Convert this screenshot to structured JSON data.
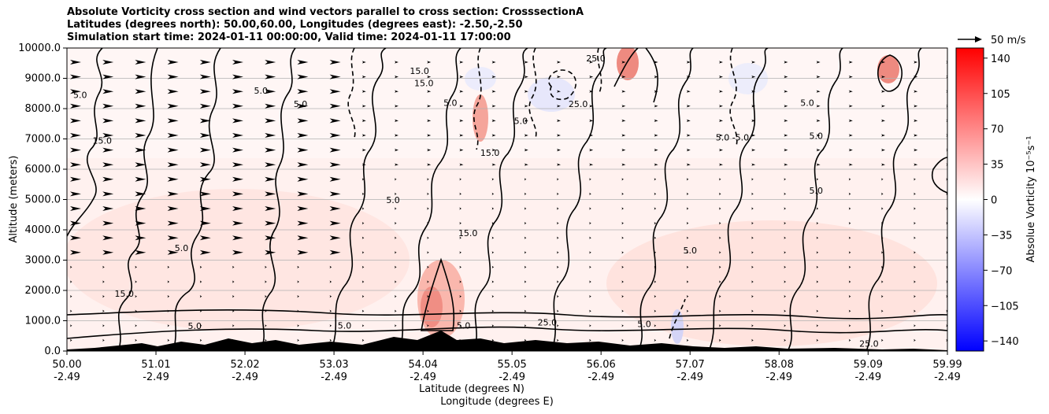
{
  "title": {
    "line1": "Absolute Vorticity cross section and wind vectors parallel to cross section: CrosssectionA",
    "line2": "Latitudes (degrees north): 50.00,60.00, Longitudes (degrees east): -2.50,-2.50",
    "line3": "Simulation start time: 2024-01-11 00:00:00, Valid time: 2024-01-11 17:00:00"
  },
  "reference_vector": {
    "label": "50 m/s"
  },
  "axes": {
    "ylabel": "Altitude (meters)",
    "xlabel_lat": "Latitude (degrees N)",
    "xlabel_lon": "Longitude (degrees E)"
  },
  "colorbar": {
    "label": "Absolue Vorticity 10⁻⁵s⁻¹",
    "ticks": [
      "140",
      "105",
      "70",
      "35",
      "0",
      "−35",
      "−70",
      "−105",
      "−140"
    ],
    "colors": {
      "high": "#ff0000",
      "mid": "#ffffff",
      "low": "#0000ff"
    }
  },
  "chart_data": {
    "type": "heatmap",
    "description_type": "vertical cross section contour + vectors",
    "x_ticks": [
      {
        "lat": "50.00",
        "lon": "-2.49"
      },
      {
        "lat": "51.01",
        "lon": "-2.49"
      },
      {
        "lat": "52.02",
        "lon": "-2.49"
      },
      {
        "lat": "53.03",
        "lon": "-2.49"
      },
      {
        "lat": "54.04",
        "lon": "-2.49"
      },
      {
        "lat": "55.05",
        "lon": "-2.49"
      },
      {
        "lat": "56.06",
        "lon": "-2.49"
      },
      {
        "lat": "57.07",
        "lon": "-2.49"
      },
      {
        "lat": "58.08",
        "lon": "-2.49"
      },
      {
        "lat": "59.09",
        "lon": "-2.49"
      },
      {
        "lat": "59.99",
        "lon": "-2.49"
      }
    ],
    "x_range": [
      50.0,
      59.99
    ],
    "y_ticks": [
      "0.0",
      "1000.0",
      "2000.0",
      "3000.0",
      "4000.0",
      "5000.0",
      "6000.0",
      "7000.0",
      "8000.0",
      "9000.0",
      "10000.0"
    ],
    "y_range": [
      0,
      10000
    ],
    "colorbar_range": [
      -150,
      150
    ],
    "grid": "horizontal",
    "contour_labels": [
      {
        "text": "5.0",
        "x": 50.15,
        "y": 8450
      },
      {
        "text": "15.0",
        "x": 50.4,
        "y": 6950
      },
      {
        "text": "5.0",
        "x": 51.3,
        "y": 3400
      },
      {
        "text": "15.0",
        "x": 50.65,
        "y": 1900
      },
      {
        "text": "5.0",
        "x": 52.2,
        "y": 8600
      },
      {
        "text": "5.0",
        "x": 52.65,
        "y": 8150
      },
      {
        "text": "5.0",
        "x": 53.7,
        "y": 4990
      },
      {
        "text": "15.0",
        "x": 54.55,
        "y": 3900
      },
      {
        "text": "15.0",
        "x": 54.0,
        "y": 9250
      },
      {
        "text": "15.0",
        "x": 54.05,
        "y": 8850
      },
      {
        "text": "5.0",
        "x": 54.35,
        "y": 8200
      },
      {
        "text": "5.0",
        "x": 55.15,
        "y": 7600
      },
      {
        "text": "15.0",
        "x": 54.8,
        "y": 6550
      },
      {
        "text": "5.0",
        "x": 57.07,
        "y": 3330
      },
      {
        "text": "5.0 -5.0",
        "x": 57.55,
        "y": 7050
      },
      {
        "text": "5.0",
        "x": 58.5,
        "y": 7100
      },
      {
        "text": "5.0",
        "x": 58.5,
        "y": 5300
      },
      {
        "text": "5.0",
        "x": 58.4,
        "y": 8200
      },
      {
        "text": "5.0",
        "x": 53.15,
        "y": 850
      },
      {
        "text": "5.0",
        "x": 54.5,
        "y": 850
      },
      {
        "text": "25.0",
        "x": 55.45,
        "y": 950
      },
      {
        "text": "5.0",
        "x": 56.55,
        "y": 900
      },
      {
        "text": "25.0",
        "x": 59.1,
        "y": 250
      },
      {
        "text": "5.0",
        "x": 51.45,
        "y": 830
      },
      {
        "text": "25.0",
        "x": 56.0,
        "y": 9660
      },
      {
        "text": "25.0",
        "x": 55.8,
        "y": 8150
      }
    ],
    "overlay": "solid contours positive, dashed contours negative, black terrain at surface, wind arrows pointing toward increasing latitude"
  }
}
